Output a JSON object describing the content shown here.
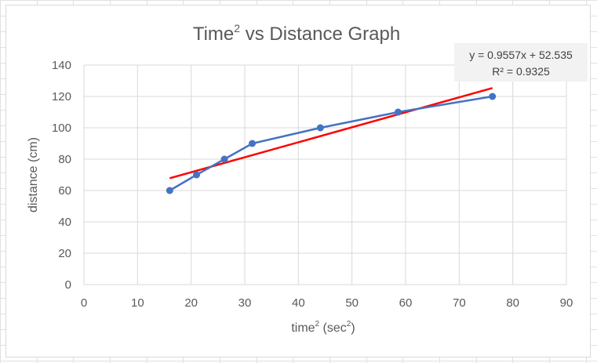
{
  "chart_data": {
    "type": "scatter",
    "title": {
      "main": "Time",
      "sup": "2",
      "rest": " vs Distance Graph"
    },
    "xlabel": {
      "main": "time",
      "sup1": "2",
      "mid": " (sec",
      "sup2": "2",
      "end": ")"
    },
    "ylabel": "distance (cm)",
    "xlim": [
      0,
      90
    ],
    "ylim": [
      0,
      140
    ],
    "xticks": [
      0,
      10,
      20,
      30,
      40,
      50,
      60,
      70,
      80,
      90
    ],
    "yticks": [
      0,
      20,
      40,
      60,
      80,
      100,
      120,
      140
    ],
    "grid": true,
    "series": [
      {
        "name": "distance",
        "color": "#4472c4",
        "style": "line-with-markers",
        "x": [
          16,
          21,
          26.2,
          31.4,
          44.1,
          58.6,
          76.2
        ],
        "y": [
          60,
          70,
          80,
          90,
          100,
          110,
          120
        ]
      }
    ],
    "trendline": {
      "type": "linear",
      "color": "#ff0000",
      "slope": 0.9557,
      "intercept": 52.535,
      "x_range": [
        16,
        76.2
      ],
      "equation_label": "y = 0.9557x + 52.535",
      "r2_label": "R² = 0.9325"
    }
  }
}
